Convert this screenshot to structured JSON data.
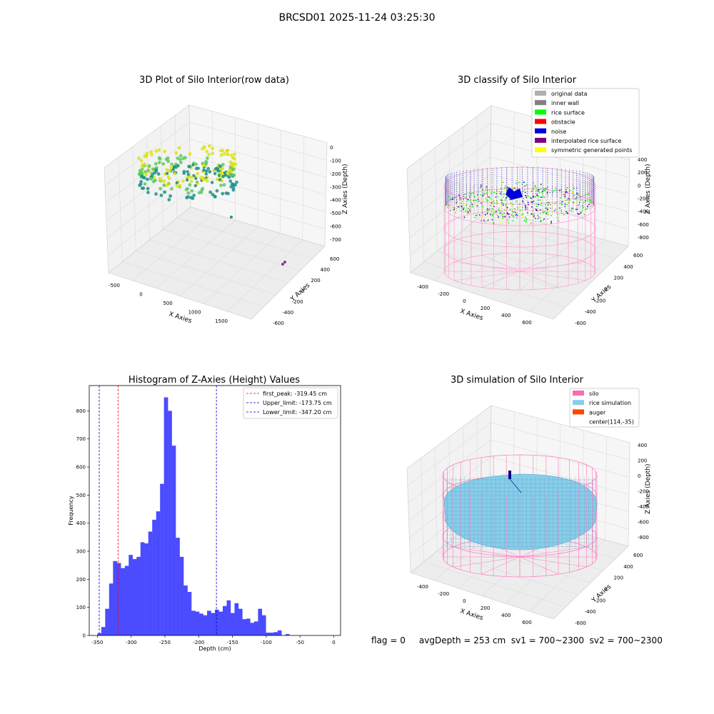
{
  "figure": {
    "suptitle": "BRCSD01 2025-11-24 03:25:30",
    "footer": "flag = 0     avgDepth = 253 cm  sv1 = 700~2300  sv2 = 700~2300"
  },
  "panels": {
    "raw": {
      "title": "3D Plot of Silo Interior(row data)",
      "xlabel": "X Axies",
      "ylabel": "Y Axies",
      "zlabel": "Z Axies (Depth)",
      "xticks": [
        "-500",
        "0",
        "500",
        "1000",
        "1500"
      ],
      "yticks": [
        "600",
        "400",
        "200",
        "0",
        "-200",
        "-400",
        "-600"
      ],
      "zticks": [
        "0",
        "-100",
        "-200",
        "-300",
        "-400",
        "-500",
        "-600",
        "-700"
      ],
      "colors": {
        "high": "#dde318",
        "mid": "#5ec962",
        "low": "#21918c"
      }
    },
    "classify": {
      "title": "3D classify of Silo Interior",
      "xlabel": "X Axies",
      "ylabel": "Y Axies",
      "zlabel": "Z Axies (Depth)",
      "xticks": [
        "-400",
        "-200",
        "0",
        "200",
        "400",
        "600"
      ],
      "yticks": [
        "600",
        "400",
        "200",
        "0",
        "-200",
        "-400",
        "-600"
      ],
      "zticks": [
        "400",
        "200",
        "0",
        "-200",
        "-400",
        "-600",
        "-800"
      ],
      "legend": [
        {
          "label": "original data",
          "color": "#b0b0b0"
        },
        {
          "label": "inner wall",
          "color": "#808080"
        },
        {
          "label": "rice surface",
          "color": "#00ff00"
        },
        {
          "label": "obstacle",
          "color": "#ff0000"
        },
        {
          "label": "noise",
          "color": "#0000dd"
        },
        {
          "label": "interpolated rice surface",
          "color": "#800080"
        },
        {
          "label": "symmetric generated points",
          "color": "#ffff00"
        }
      ],
      "wire_color": "#ff9ccf"
    },
    "hist": {
      "title": "Histogram of Z-Axies (Height) Values",
      "xlabel": "Depth (cm)",
      "ylabel": "Frequency",
      "legend": [
        {
          "label": "first_peak: -319.45 cm",
          "color": "#ff0000"
        },
        {
          "label": "Upper_limit: -173.75 cm",
          "color": "#0000cc"
        },
        {
          "label": "Lower_limit: -347.20 cm",
          "color": "#0000cc"
        }
      ]
    },
    "sim": {
      "title": "3D simulation of Silo Interior",
      "xlabel": "X Axies",
      "ylabel": "Y Axies",
      "zlabel": "Z Axies (Depth)",
      "xticks": [
        "-400",
        "-200",
        "0",
        "200",
        "400",
        "600"
      ],
      "yticks": [
        "600",
        "400",
        "200",
        "0",
        "-200",
        "-400",
        "-600"
      ],
      "zticks": [
        "400",
        "200",
        "0",
        "-200",
        "-400",
        "-600",
        "-800"
      ],
      "legend": [
        {
          "label": "silo",
          "color": "#ff69b4"
        },
        {
          "label": "rice simulation",
          "color": "#87ceeb"
        },
        {
          "label": "auger",
          "color": "#ff4500"
        },
        {
          "label": "center(114,-35)",
          "color": ""
        }
      ],
      "wire_color": "#ff77c0",
      "rice_color": "#87ceeb"
    }
  },
  "chart_data": {
    "type": "bar",
    "title": "Histogram of Z-Axies (Height) Values",
    "xlabel": "Depth (cm)",
    "ylabel": "Frequency",
    "xlim": [
      -362,
      10
    ],
    "ylim": [
      0,
      890
    ],
    "xticks": [
      -350,
      -300,
      -250,
      -200,
      -150,
      -100,
      -50,
      0
    ],
    "yticks": [
      0,
      100,
      200,
      300,
      400,
      500,
      600,
      700,
      800
    ],
    "bin_start": -350,
    "bin_width": 5.8,
    "values": [
      8,
      30,
      95,
      185,
      265,
      258,
      240,
      248,
      287,
      272,
      280,
      332,
      328,
      370,
      412,
      442,
      540,
      848,
      800,
      676,
      348,
      280,
      178,
      155,
      88,
      85,
      78,
      72,
      88,
      80,
      92,
      85,
      105,
      125,
      80,
      115,
      95,
      58,
      60,
      45,
      50,
      95,
      72,
      10,
      10,
      12,
      18,
      0,
      5
    ],
    "bar_color": "#4b4bff",
    "vlines": [
      {
        "name": "first_peak",
        "value": -319.45,
        "color": "#ff0000"
      },
      {
        "name": "Upper_limit",
        "value": -173.75,
        "color": "#0000cc"
      },
      {
        "name": "Lower_limit",
        "value": -347.2,
        "color": "#0000cc"
      }
    ],
    "legend_position": "upper right"
  }
}
